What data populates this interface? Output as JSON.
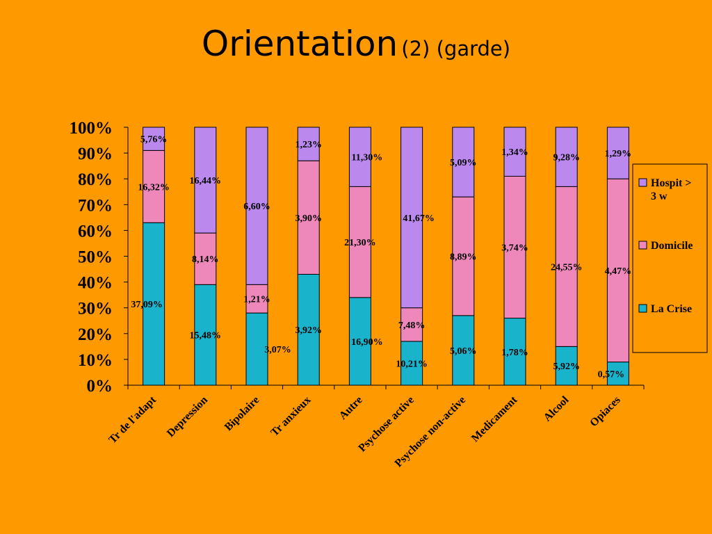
{
  "slide": {
    "title": "Orientation",
    "subtitle": "(2) (garde)"
  },
  "chart_data": {
    "type": "bar",
    "stacked": true,
    "percent_stacked": true,
    "title": "Orientation (2) (garde)",
    "ylim": [
      0,
      100
    ],
    "yticks": [
      "0%",
      "10%",
      "20%",
      "30%",
      "40%",
      "50%",
      "60%",
      "70%",
      "80%",
      "90%",
      "100%"
    ],
    "legend_position": "right",
    "categories": [
      "Tr de l'adapt",
      "Depression",
      "Bipolaire",
      "Tr anxieux",
      "Autre",
      "Psychose active",
      "Psychose non-active",
      "Medicament",
      "Alcool",
      "Opiaces"
    ],
    "series": [
      {
        "name": "La Crise",
        "color": "#1ab3cc",
        "values": [
          37.09,
          15.48,
          3.07,
          3.92,
          16.9,
          10.21,
          5.06,
          1.78,
          5.92,
          0.57
        ],
        "labels": [
          "37,09%",
          "15,48%",
          "3,07%",
          "3,92%",
          "16,90%",
          "10,21%",
          "5,06%",
          "1,78%",
          "5,92%",
          "0,57%"
        ],
        "share_percent": [
          63,
          39,
          28,
          43,
          34,
          17,
          27,
          26,
          15,
          9
        ]
      },
      {
        "name": "Domicile",
        "color": "#ee88bb",
        "values": [
          16.32,
          8.14,
          1.21,
          3.9,
          21.3,
          7.48,
          8.89,
          3.74,
          24.55,
          4.47
        ],
        "labels": [
          "16,32%",
          "8,14%",
          "1,21%",
          "3,90%",
          "21,30%",
          "7,48%",
          "8,89%",
          "3,74%",
          "24,55%",
          "4,47%"
        ],
        "share_percent": [
          28,
          20,
          11,
          44,
          43,
          13,
          46,
          55,
          62,
          71
        ]
      },
      {
        "name": "Hospit > 3 w",
        "color": "#bb88ee",
        "values": [
          5.76,
          16.44,
          6.6,
          1.23,
          11.3,
          41.67,
          5.09,
          1.34,
          9.28,
          1.29
        ],
        "labels": [
          "5,76%",
          "16,44%",
          "6,60%",
          "1,23%",
          "11,30%",
          "41,67%",
          "5,09%",
          "1,34%",
          "9,28%",
          "1,29%"
        ],
        "share_percent": [
          9,
          41,
          61,
          13,
          23,
          70,
          27,
          19,
          23,
          20
        ]
      }
    ],
    "legend_order": [
      "Hospit > 3 w",
      "Domicile",
      "La Crise"
    ],
    "legend_lines": [
      [
        "Hospit >",
        "3 w"
      ],
      [
        "Domicile"
      ],
      [
        "La Crise"
      ]
    ],
    "label_offsets": [
      [
        -10,
        0,
        30,
        0,
        10,
        0,
        0,
        0,
        0,
        -10
      ],
      [
        0,
        0,
        0,
        0,
        0,
        0,
        0,
        0,
        0,
        0
      ],
      [
        0,
        0,
        0,
        0,
        10,
        10,
        0,
        0,
        0,
        0
      ]
    ]
  }
}
